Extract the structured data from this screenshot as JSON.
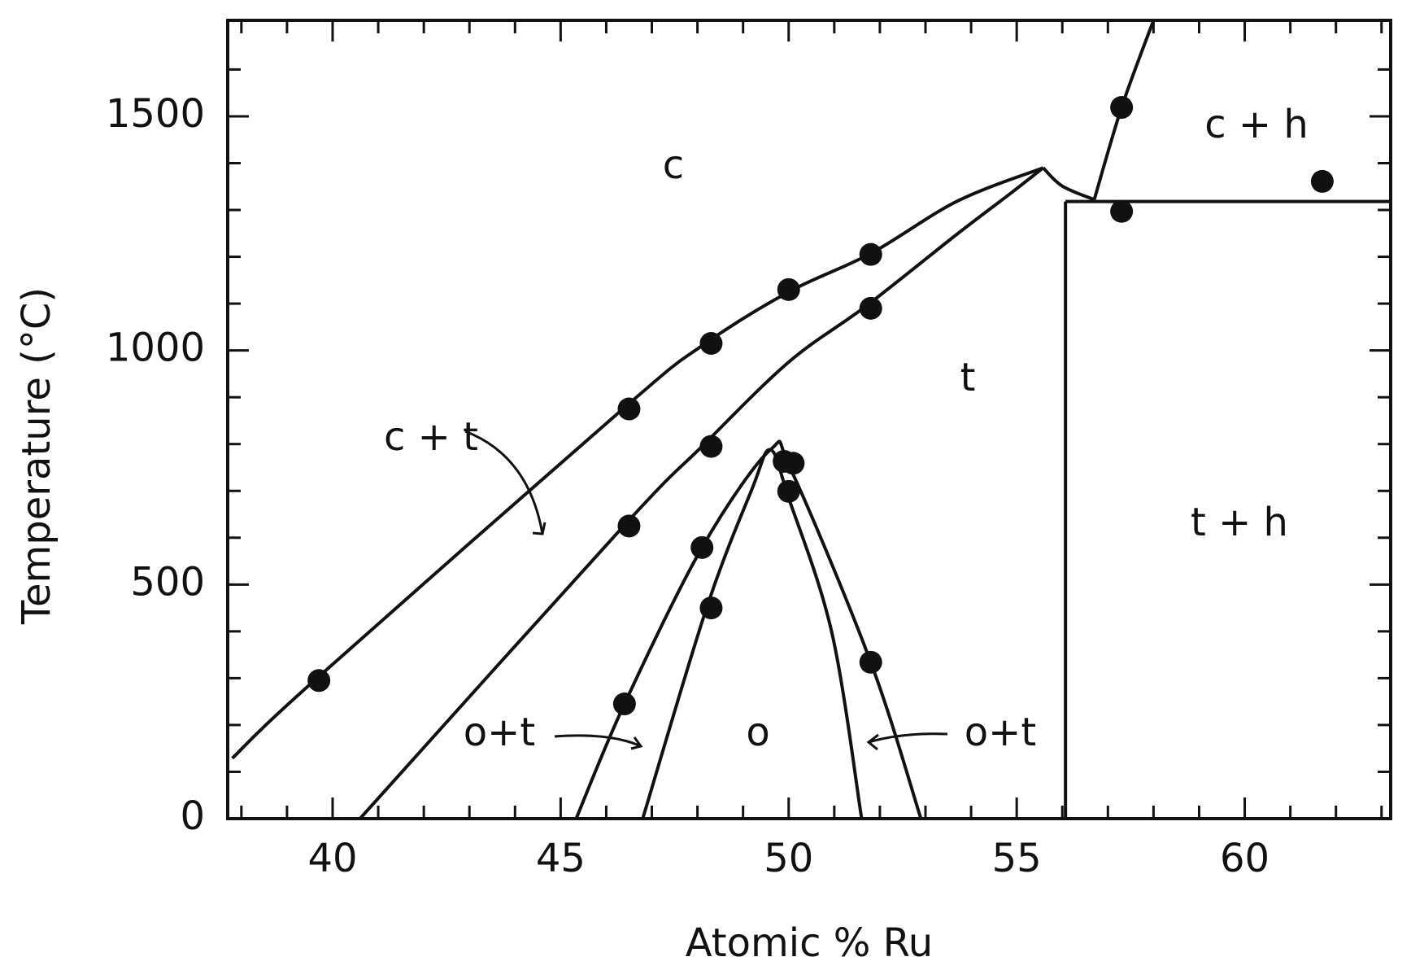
{
  "chart_data": {
    "type": "scatter",
    "x_label": "Atomic % Ru",
    "y_label": "Temperature   (°C)",
    "xlim": [
      37.7,
      63.2
    ],
    "ylim": [
      0,
      1705
    ],
    "xticks": [
      40,
      45,
      50,
      55,
      60
    ],
    "yticks": [
      0,
      500,
      1000,
      1500
    ],
    "xminorticks": [
      38,
      39,
      41,
      42,
      43,
      44,
      46,
      47,
      48,
      49,
      51,
      52,
      53,
      54,
      56,
      57,
      58,
      59,
      61,
      62,
      63
    ],
    "yminorticks": [
      100,
      200,
      300,
      400,
      600,
      700,
      800,
      900,
      1100,
      1200,
      1300,
      1400,
      1600
    ],
    "series": [
      {
        "color": "#111111",
        "x": [
          39.7,
          46.5,
          48.3,
          50.0,
          51.8,
          46.5,
          48.3,
          51.8,
          48.1,
          48.3,
          46.4,
          49.9,
          50.1,
          50.0,
          51.8,
          57.3,
          57.3,
          61.7
        ],
        "y": [
          295,
          875,
          1015,
          1130,
          1205,
          625,
          795,
          1090,
          579,
          450,
          245,
          763,
          759,
          699,
          334,
          1519,
          1297,
          1361
        ]
      }
    ],
    "curves": [
      {
        "x": [
          37.8,
          39.6,
          46.4,
          48.1,
          50.0,
          51.8,
          53.7,
          55.58
        ],
        "y": [
          129,
          295,
          878,
          1010,
          1125,
          1207,
          1319,
          1390
        ]
      },
      {
        "x": [
          40.6,
          46.4,
          48.1,
          50.0,
          51.7,
          53.7,
          54.9,
          55.58
        ],
        "y": [
          0,
          627,
          795,
          975,
          1095,
          1249,
          1338,
          1390
        ]
      },
      {
        "x": [
          55.58,
          56.0,
          56.7
        ],
        "y": [
          1390,
          1351,
          1322
        ]
      },
      {
        "x": [
          56.7,
          57.3,
          58.0
        ],
        "y": [
          1322,
          1519,
          1705
        ]
      },
      {
        "x": [
          56.07,
          63.2
        ],
        "y": [
          1318,
          1318
        ]
      },
      {
        "x": [
          56.07,
          56.07
        ],
        "y": [
          0,
          1318
        ]
      },
      {
        "x": [
          45.34,
          46.4,
          48.1,
          49.6,
          50.06,
          51.8,
          52.9
        ],
        "y": [
          0,
          245,
          579,
          788,
          743,
          334,
          0
        ]
      },
      {
        "x": [
          46.8,
          48.2,
          49.2,
          49.6,
          50.0,
          50.95,
          51.6
        ],
        "y": [
          0,
          450,
          705,
          788,
          685,
          396,
          0
        ]
      }
    ],
    "annotations": [
      "c",
      "c + h",
      "t",
      "t + h",
      "c + t",
      "o",
      "o+t",
      "o+t"
    ]
  }
}
